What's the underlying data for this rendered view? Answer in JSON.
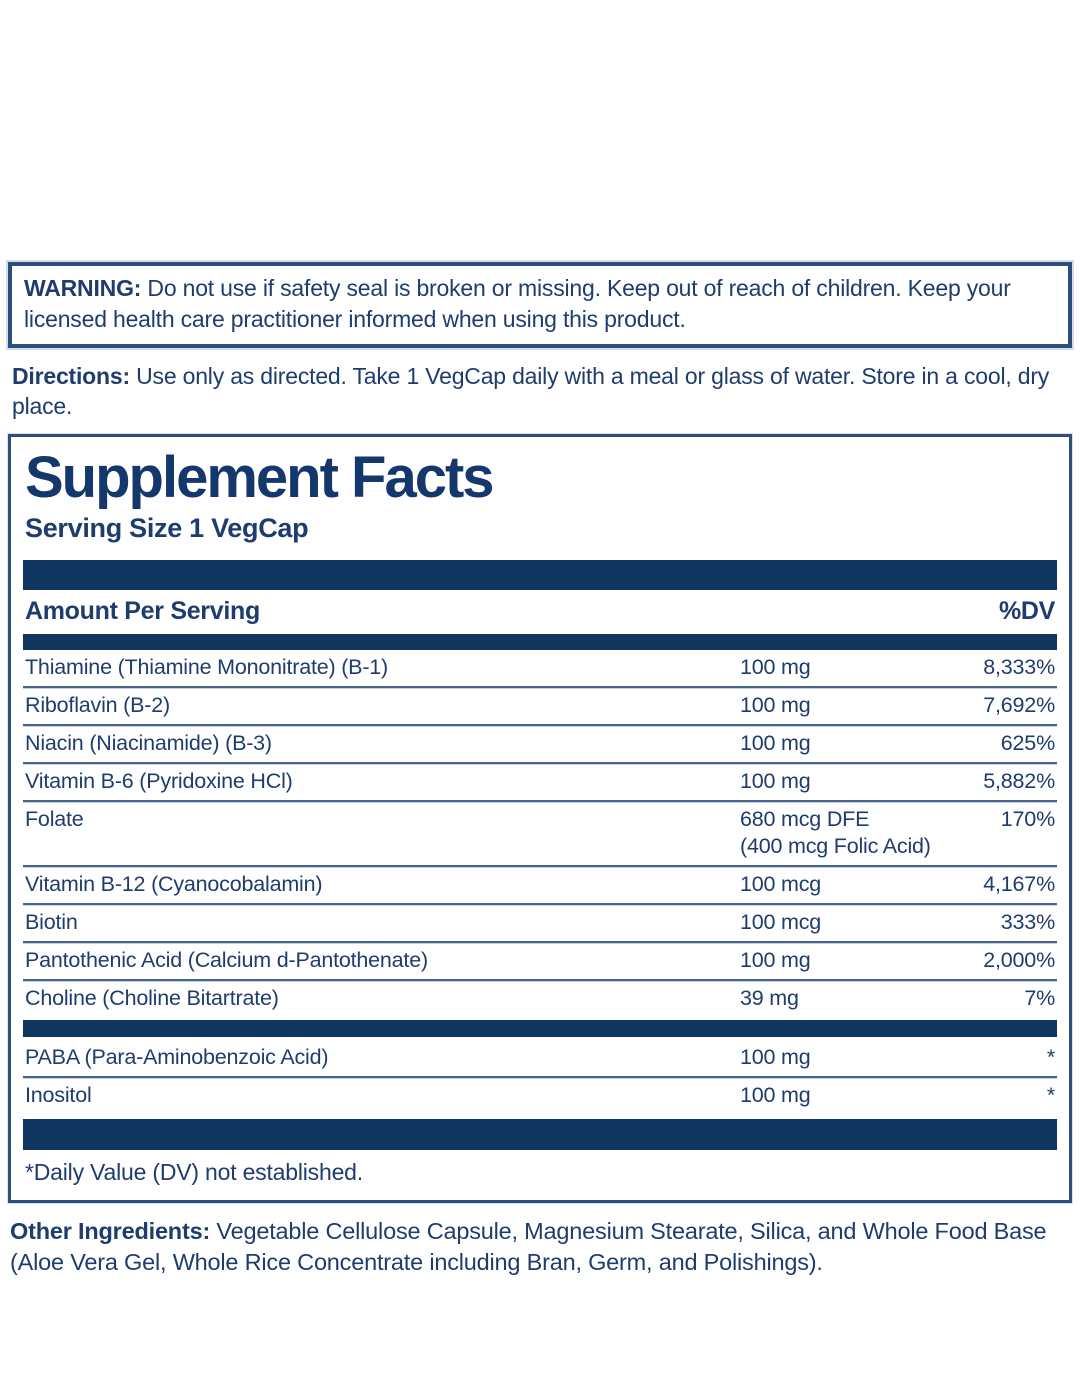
{
  "colors": {
    "navy_text": "#1e3c6e",
    "navy_bar": "#10355e",
    "box_border": "#2d4e7e",
    "row_separator": "#46648f"
  },
  "warning": {
    "label": "WARNING:",
    "text": " Do not use if safety seal is broken or missing. Keep out of reach of children. Keep your licensed health care practitioner informed when using this product."
  },
  "directions": {
    "label": "Directions:",
    "text": " Use only as directed. Take 1 VegCap daily with a meal or glass of water. Store in a cool, dry place."
  },
  "supplement_facts": {
    "title": "Supplement Facts",
    "serving_size": "Serving Size 1 VegCap",
    "columns": {
      "amount_header": "Amount Per Serving",
      "dv_header": "%DV"
    },
    "main_rows": [
      {
        "name": "Thiamine (Thiamine Mononitrate) (B-1)",
        "amount": "100 mg",
        "amount_note": "",
        "dv": "8,333%"
      },
      {
        "name": "Riboflavin (B-2)",
        "amount": "100 mg",
        "amount_note": "",
        "dv": "7,692%"
      },
      {
        "name": "Niacin (Niacinamide) (B-3)",
        "amount": "100 mg",
        "amount_note": "",
        "dv": "625%"
      },
      {
        "name": "Vitamin B-6 (Pyridoxine HCl)",
        "amount": "100 mg",
        "amount_note": "",
        "dv": "5,882%"
      },
      {
        "name": "Folate",
        "amount": "680 mcg DFE",
        "amount_note": "(400 mcg Folic Acid)",
        "dv": "170%"
      },
      {
        "name": "Vitamin B-12 (Cyanocobalamin)",
        "amount": "100 mcg",
        "amount_note": "",
        "dv": "4,167%"
      },
      {
        "name": "Biotin",
        "amount": "100 mcg",
        "amount_note": "",
        "dv": "333%"
      },
      {
        "name": "Pantothenic Acid (Calcium d-Pantothenate)",
        "amount": "100 mg",
        "amount_note": "",
        "dv": "2,000%"
      },
      {
        "name": "Choline (Choline Bitartrate)",
        "amount": "39 mg",
        "amount_note": "",
        "dv": "7%"
      }
    ],
    "additional_rows": [
      {
        "name": "PABA (Para-Aminobenzoic Acid)",
        "amount": "100 mg",
        "amount_note": "",
        "dv": "*"
      },
      {
        "name": "Inositol",
        "amount": "100 mg",
        "amount_note": "",
        "dv": "*"
      }
    ],
    "footnote": "*Daily Value (DV) not established."
  },
  "other_ingredients": {
    "label": "Other Ingredients:",
    "text": " Vegetable Cellulose Capsule, Magnesium Stearate, Silica, and Whole Food Base (Aloe Vera Gel, Whole Rice Concentrate including Bran, Germ, and Polishings)."
  }
}
